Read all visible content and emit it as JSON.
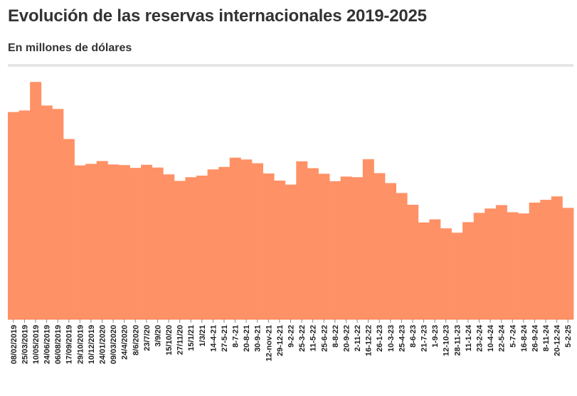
{
  "header": {
    "title": "Evolución de las reservas internacionales 2019-2025",
    "subtitle": "En millones de dólares"
  },
  "colors": {
    "bar": "#ff9166",
    "bar_dark": "#ff7a45",
    "text": "#333333",
    "rule": "#e6e6e6"
  },
  "chart_data": {
    "type": "bar",
    "title": "Evolución de las reservas internacionales 2019-2025",
    "subtitle": "En millones de dólares",
    "xlabel": "",
    "ylabel": "",
    "grid": false,
    "legend": "none",
    "categories": [
      "08/02/2019",
      "25/03/2019",
      "10/05/2019",
      "24/06/2019",
      "06/08/2019",
      "17/09/2019",
      "29/10/2019",
      "10/12/2019",
      "24/01/2020",
      "09/03/2020",
      "24/4/2020",
      "8/6/2020",
      "23/7/20",
      "3/9/20",
      "15/10/20",
      "27/11/20",
      "15/1/21",
      "1/3/21",
      "14-4-21",
      "27-5-21",
      "8-7-21",
      "20-8-21",
      "30-9-21",
      "12-nov-21",
      "29-12-21",
      "9-2-22",
      "25-3-22",
      "11-5-22",
      "25-6-22",
      "8-8-22",
      "20-9-22",
      "2-11-22",
      "16-12-22",
      "26-1-23",
      "10-3-23",
      "25-4-23",
      "8-6-23",
      "21-7-23",
      "1-9-23",
      "12-10-23",
      "28-11-23",
      "11-1-24",
      "23-2-24",
      "10-4-24",
      "22-5-24",
      "5-7-24",
      "16-8-24",
      "26-9-24",
      "8-11-24",
      "20-12-24",
      "5-2-25"
    ],
    "values": [
      66800,
      67300,
      76500,
      68900,
      67800,
      58100,
      49600,
      50100,
      51000,
      49900,
      49700,
      48800,
      49800,
      48900,
      46700,
      44600,
      45800,
      46300,
      48300,
      49100,
      52100,
      51500,
      50300,
      47000,
      44700,
      43400,
      50900,
      48700,
      46900,
      44500,
      46000,
      45800,
      51600,
      47100,
      43900,
      40700,
      36900,
      31200,
      32200,
      29300,
      27900,
      31300,
      34300,
      35700,
      36800,
      34500,
      34100,
      37600,
      38500,
      39600,
      35900
    ],
    "ylim": [
      0,
      80000
    ]
  }
}
